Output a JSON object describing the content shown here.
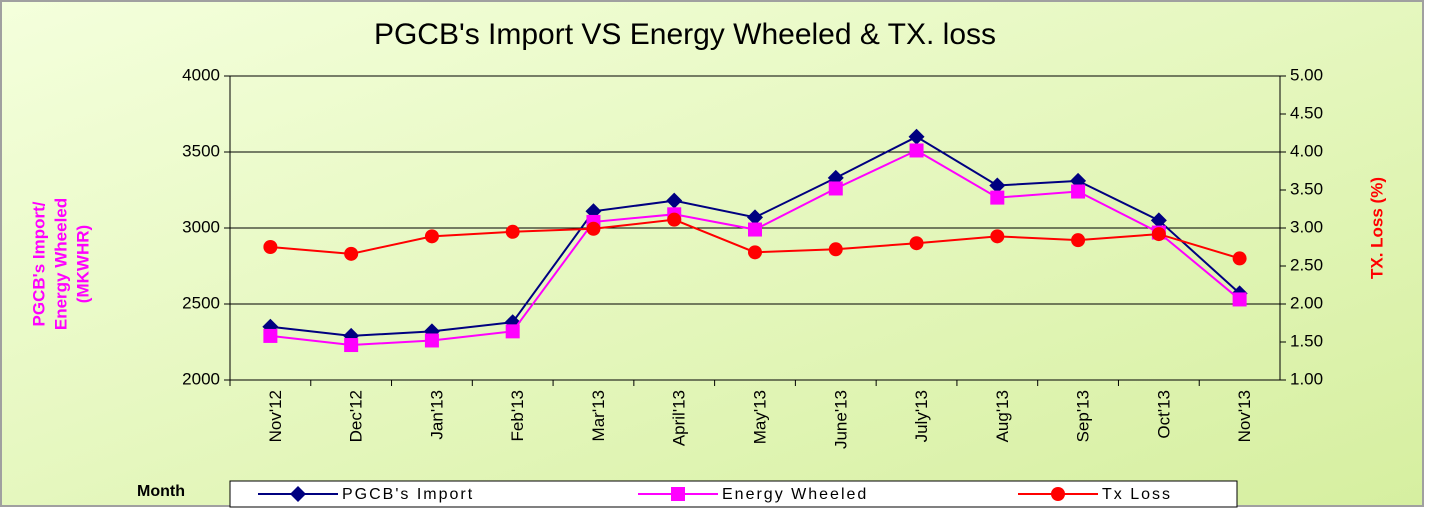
{
  "chart_data": {
    "type": "line",
    "title": "PGCB's  Import  VS  Energy Wheeled & TX. loss",
    "y_label": [
      "PGCB's Import/",
      "Energy Wheeled",
      "(MKWHR)"
    ],
    "y2_label": "TX. Loss (%)",
    "x_label": "Month",
    "categories": [
      "Nov'12",
      "Dec'12",
      "Jan'13",
      "Feb'13",
      "Mar'13",
      "April'13",
      "May'13",
      "June'13",
      "July'13",
      "Aug'13",
      "Sep'13",
      "Oct'13",
      "Nov'13"
    ],
    "ylim": [
      2000,
      4000
    ],
    "yticks": [
      2000,
      2500,
      3000,
      3500,
      4000
    ],
    "y2lim": [
      1,
      5
    ],
    "y2ticks": [
      {
        "value": 1,
        "label": "1.00"
      },
      {
        "value": 1.5,
        "label": "1.50"
      },
      {
        "value": 2,
        "label": "2.00"
      },
      {
        "value": 2.5,
        "label": "2.50"
      },
      {
        "value": 3,
        "label": "3.00"
      },
      {
        "value": 3.5,
        "label": "3.50"
      },
      {
        "value": 4,
        "label": "4.00"
      },
      {
        "value": 4.5,
        "label": "4.50"
      },
      {
        "value": 5,
        "label": "5.00"
      }
    ],
    "grid": true,
    "series": [
      {
        "name": "PGCB's Import",
        "color": "#000080",
        "marker": "diamond",
        "values": [
          2350,
          2290,
          2320,
          2380,
          3110,
          3180,
          3070,
          3330,
          3600,
          3280,
          3310,
          3050,
          2570
        ]
      },
      {
        "name": "Energy Wheeled",
        "color": "#ff00ff",
        "marker": "square",
        "values": [
          2290,
          2230,
          2260,
          2320,
          3040,
          3090,
          2990,
          3260,
          3510,
          3200,
          3240,
          2970,
          2530
        ]
      },
      {
        "name": "Tx Loss",
        "color": "#ff0000",
        "marker": "circle",
        "axis": "y2",
        "values": [
          2.75,
          2.66,
          2.89,
          2.95,
          2.99,
          3.11,
          2.68,
          2.72,
          2.8,
          2.89,
          2.84,
          2.92,
          2.6
        ]
      }
    ]
  }
}
